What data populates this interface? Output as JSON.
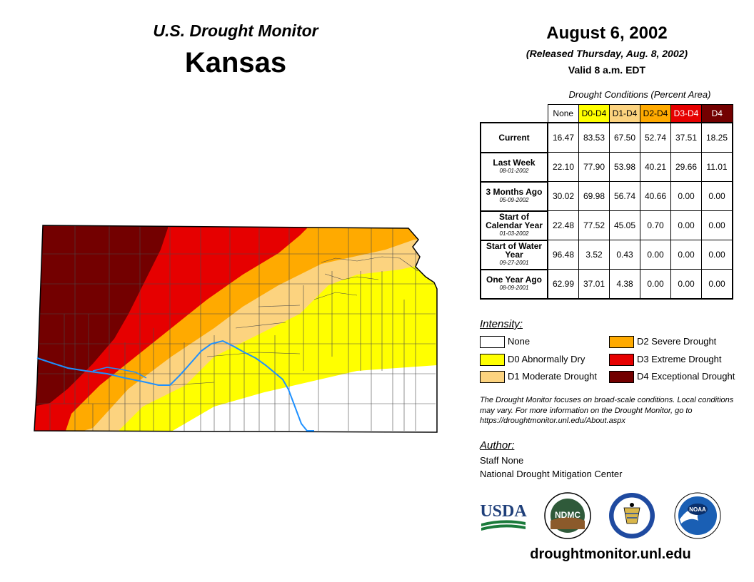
{
  "header": {
    "subtitle": "U.S. Drought Monitor",
    "state": "Kansas",
    "date": "August 6, 2002",
    "released": "(Released Thursday, Aug. 8, 2002)",
    "valid": "Valid 8 a.m. EDT"
  },
  "table": {
    "caption": "Drought Conditions (Percent Area)",
    "columns": [
      {
        "label": "None",
        "bg": "#ffffff",
        "fg": "#000000"
      },
      {
        "label": "D0-D4",
        "bg": "#ffff00",
        "fg": "#000000"
      },
      {
        "label": "D1-D4",
        "bg": "#fcd37f",
        "fg": "#000000"
      },
      {
        "label": "D2-D4",
        "bg": "#ffaa00",
        "fg": "#000000"
      },
      {
        "label": "D3-D4",
        "bg": "#e60000",
        "fg": "#ffffff"
      },
      {
        "label": "D4",
        "bg": "#730000",
        "fg": "#ffffff"
      }
    ],
    "rows": [
      {
        "label": "Current",
        "date": "",
        "values": [
          "16.47",
          "83.53",
          "67.50",
          "52.74",
          "37.51",
          "18.25"
        ]
      },
      {
        "label": "Last Week",
        "date": "08-01-2002",
        "values": [
          "22.10",
          "77.90",
          "53.98",
          "40.21",
          "29.66",
          "11.01"
        ]
      },
      {
        "label": "3 Months Ago",
        "date": "05-09-2002",
        "values": [
          "30.02",
          "69.98",
          "56.74",
          "40.66",
          "0.00",
          "0.00"
        ]
      },
      {
        "label": "Start of Calendar Year",
        "date": "01-03-2002",
        "values": [
          "22.48",
          "77.52",
          "45.05",
          "0.70",
          "0.00",
          "0.00"
        ]
      },
      {
        "label": "Start of Water Year",
        "date": "09-27-2001",
        "values": [
          "96.48",
          "3.52",
          "0.43",
          "0.00",
          "0.00",
          "0.00"
        ]
      },
      {
        "label": "One Year Ago",
        "date": "08-09-2001",
        "values": [
          "62.99",
          "37.01",
          "4.38",
          "0.00",
          "0.00",
          "0.00"
        ]
      }
    ]
  },
  "legend": {
    "title": "Intensity:",
    "items": [
      {
        "label": "None",
        "color": "#ffffff"
      },
      {
        "label": "D0 Abnormally Dry",
        "color": "#ffff00"
      },
      {
        "label": "D1 Moderate Drought",
        "color": "#fcd37f"
      },
      {
        "label": "D2 Severe Drought",
        "color": "#ffaa00"
      },
      {
        "label": "D3 Extreme Drought",
        "color": "#e60000"
      },
      {
        "label": "D4 Exceptional Drought",
        "color": "#730000"
      }
    ]
  },
  "note": "The Drought Monitor focuses on broad-scale conditions. Local conditions may vary. For more information on the Drought Monitor, go to https://droughtmonitor.unl.edu/About.aspx",
  "author": {
    "title": "Author:",
    "name": "Staff None",
    "org": "National Drought Mitigation Center"
  },
  "logos": {
    "usda": "USDA",
    "ndmc": "NDMC",
    "noaa": "NOAA"
  },
  "site_url": "droughtmonitor.unl.edu",
  "map": {
    "colors": {
      "d4": "#730000",
      "d3": "#e60000",
      "d2": "#ffaa00",
      "d1": "#fcd37f",
      "d0": "#ffff00",
      "none": "#ffffff",
      "river": "#1e90ff"
    }
  }
}
